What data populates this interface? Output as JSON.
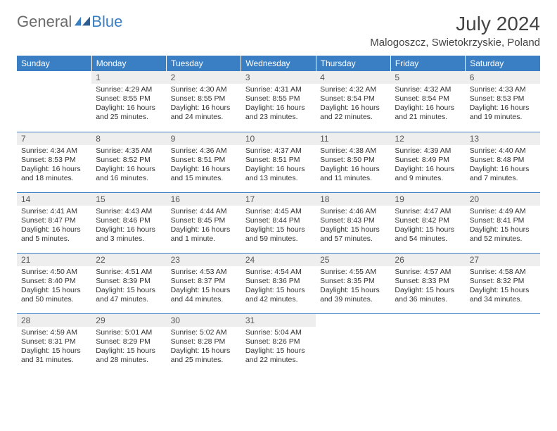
{
  "brand": {
    "part1": "General",
    "part2": "Blue"
  },
  "title": "July 2024",
  "location": "Malogoszcz, Swietokrzyskie, Poland",
  "colors": {
    "header_bg": "#3a7fc4",
    "header_text": "#ffffff",
    "daynum_bg": "#eeeeee",
    "row_divider": "#3a7fc4",
    "body_text": "#333333"
  },
  "day_headers": [
    "Sunday",
    "Monday",
    "Tuesday",
    "Wednesday",
    "Thursday",
    "Friday",
    "Saturday"
  ],
  "weeks": [
    [
      null,
      {
        "n": "1",
        "sr": "4:29 AM",
        "ss": "8:55 PM",
        "dl": "16 hours and 25 minutes."
      },
      {
        "n": "2",
        "sr": "4:30 AM",
        "ss": "8:55 PM",
        "dl": "16 hours and 24 minutes."
      },
      {
        "n": "3",
        "sr": "4:31 AM",
        "ss": "8:55 PM",
        "dl": "16 hours and 23 minutes."
      },
      {
        "n": "4",
        "sr": "4:32 AM",
        "ss": "8:54 PM",
        "dl": "16 hours and 22 minutes."
      },
      {
        "n": "5",
        "sr": "4:32 AM",
        "ss": "8:54 PM",
        "dl": "16 hours and 21 minutes."
      },
      {
        "n": "6",
        "sr": "4:33 AM",
        "ss": "8:53 PM",
        "dl": "16 hours and 19 minutes."
      }
    ],
    [
      {
        "n": "7",
        "sr": "4:34 AM",
        "ss": "8:53 PM",
        "dl": "16 hours and 18 minutes."
      },
      {
        "n": "8",
        "sr": "4:35 AM",
        "ss": "8:52 PM",
        "dl": "16 hours and 16 minutes."
      },
      {
        "n": "9",
        "sr": "4:36 AM",
        "ss": "8:51 PM",
        "dl": "16 hours and 15 minutes."
      },
      {
        "n": "10",
        "sr": "4:37 AM",
        "ss": "8:51 PM",
        "dl": "16 hours and 13 minutes."
      },
      {
        "n": "11",
        "sr": "4:38 AM",
        "ss": "8:50 PM",
        "dl": "16 hours and 11 minutes."
      },
      {
        "n": "12",
        "sr": "4:39 AM",
        "ss": "8:49 PM",
        "dl": "16 hours and 9 minutes."
      },
      {
        "n": "13",
        "sr": "4:40 AM",
        "ss": "8:48 PM",
        "dl": "16 hours and 7 minutes."
      }
    ],
    [
      {
        "n": "14",
        "sr": "4:41 AM",
        "ss": "8:47 PM",
        "dl": "16 hours and 5 minutes."
      },
      {
        "n": "15",
        "sr": "4:43 AM",
        "ss": "8:46 PM",
        "dl": "16 hours and 3 minutes."
      },
      {
        "n": "16",
        "sr": "4:44 AM",
        "ss": "8:45 PM",
        "dl": "16 hours and 1 minute."
      },
      {
        "n": "17",
        "sr": "4:45 AM",
        "ss": "8:44 PM",
        "dl": "15 hours and 59 minutes."
      },
      {
        "n": "18",
        "sr": "4:46 AM",
        "ss": "8:43 PM",
        "dl": "15 hours and 57 minutes."
      },
      {
        "n": "19",
        "sr": "4:47 AM",
        "ss": "8:42 PM",
        "dl": "15 hours and 54 minutes."
      },
      {
        "n": "20",
        "sr": "4:49 AM",
        "ss": "8:41 PM",
        "dl": "15 hours and 52 minutes."
      }
    ],
    [
      {
        "n": "21",
        "sr": "4:50 AM",
        "ss": "8:40 PM",
        "dl": "15 hours and 50 minutes."
      },
      {
        "n": "22",
        "sr": "4:51 AM",
        "ss": "8:39 PM",
        "dl": "15 hours and 47 minutes."
      },
      {
        "n": "23",
        "sr": "4:53 AM",
        "ss": "8:37 PM",
        "dl": "15 hours and 44 minutes."
      },
      {
        "n": "24",
        "sr": "4:54 AM",
        "ss": "8:36 PM",
        "dl": "15 hours and 42 minutes."
      },
      {
        "n": "25",
        "sr": "4:55 AM",
        "ss": "8:35 PM",
        "dl": "15 hours and 39 minutes."
      },
      {
        "n": "26",
        "sr": "4:57 AM",
        "ss": "8:33 PM",
        "dl": "15 hours and 36 minutes."
      },
      {
        "n": "27",
        "sr": "4:58 AM",
        "ss": "8:32 PM",
        "dl": "15 hours and 34 minutes."
      }
    ],
    [
      {
        "n": "28",
        "sr": "4:59 AM",
        "ss": "8:31 PM",
        "dl": "15 hours and 31 minutes."
      },
      {
        "n": "29",
        "sr": "5:01 AM",
        "ss": "8:29 PM",
        "dl": "15 hours and 28 minutes."
      },
      {
        "n": "30",
        "sr": "5:02 AM",
        "ss": "8:28 PM",
        "dl": "15 hours and 25 minutes."
      },
      {
        "n": "31",
        "sr": "5:04 AM",
        "ss": "8:26 PM",
        "dl": "15 hours and 22 minutes."
      },
      null,
      null,
      null
    ]
  ],
  "labels": {
    "sunrise": "Sunrise:",
    "sunset": "Sunset:",
    "daylight": "Daylight:"
  }
}
